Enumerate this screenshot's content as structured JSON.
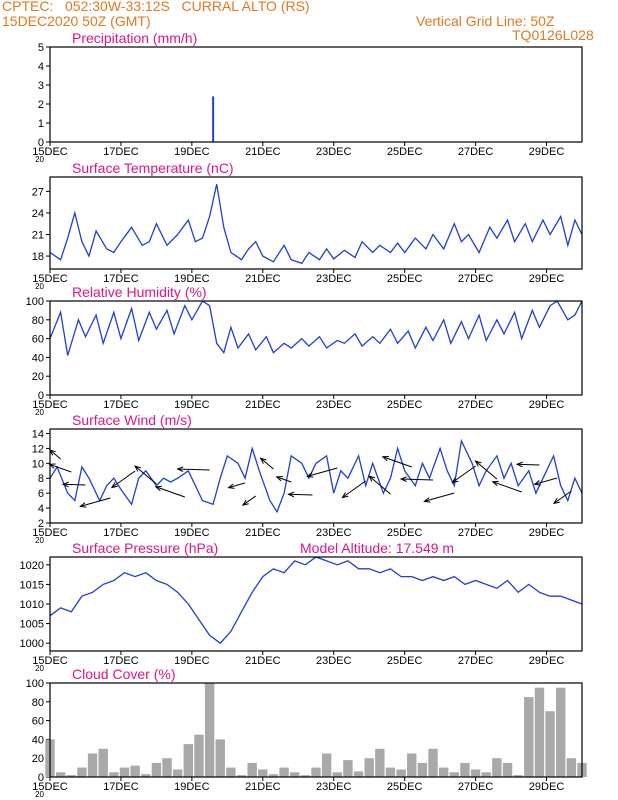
{
  "header": {
    "station": "CPTEC:   052:30W-33:12S   CURRAL ALTO (RS)",
    "date": "15DEC2020 50Z (GMT)",
    "grid_note": "Vertical Grid Line: 50Z",
    "code": "TQ0126L028",
    "altitude": "Model Altitude: 17.549 m"
  },
  "colors": {
    "header": "#e07a1f",
    "title": "#e0158a",
    "line": "#1f3fd6",
    "bar": "#a9a9a9",
    "arrow": "#000000"
  },
  "x_axis": {
    "ticks": [
      "15DEC",
      "17DEC",
      "19DEC",
      "21DEC",
      "23DEC",
      "25DEC",
      "27DEC",
      "29DEC"
    ],
    "tick_days": [
      15,
      17,
      19,
      21,
      23,
      25,
      27,
      29
    ],
    "range": [
      15,
      30.0
    ],
    "cut_label": "20"
  },
  "chart_data": [
    {
      "type": "bar",
      "title": "Precipitation (mm/h)",
      "ylim": [
        0,
        5
      ],
      "yticks": [
        0,
        1,
        2,
        3,
        4,
        5
      ],
      "x": [
        19.6
      ],
      "values": [
        2.4
      ]
    },
    {
      "type": "line",
      "title": "Surface Temperature (nC)",
      "ylim": [
        16.2,
        29
      ],
      "yticks": [
        18,
        21,
        24,
        27
      ],
      "x": [
        15.0,
        15.3,
        15.5,
        15.7,
        15.9,
        16.1,
        16.3,
        16.6,
        16.8,
        17.0,
        17.3,
        17.6,
        17.8,
        18.0,
        18.3,
        18.6,
        18.9,
        19.1,
        19.3,
        19.5,
        19.7,
        19.9,
        20.1,
        20.4,
        20.6,
        20.8,
        21.0,
        21.3,
        21.6,
        21.8,
        22.1,
        22.3,
        22.6,
        22.8,
        23.0,
        23.3,
        23.6,
        23.8,
        24.1,
        24.3,
        24.6,
        24.8,
        25.0,
        25.3,
        25.6,
        25.8,
        26.1,
        26.4,
        26.6,
        26.8,
        27.1,
        27.4,
        27.6,
        27.9,
        28.1,
        28.4,
        28.6,
        28.9,
        29.1,
        29.4,
        29.6,
        29.8,
        30.0
      ],
      "values": [
        18.5,
        17.5,
        20.5,
        24.0,
        20.0,
        18.0,
        21.5,
        19.0,
        18.5,
        20.0,
        22.0,
        19.5,
        20.0,
        22.5,
        19.5,
        21.0,
        23.0,
        20.0,
        20.5,
        23.5,
        28.0,
        22.0,
        18.5,
        17.5,
        19.0,
        20.0,
        18.0,
        17.2,
        19.5,
        17.5,
        17.0,
        18.5,
        17.5,
        19.0,
        17.6,
        18.8,
        17.8,
        20.0,
        18.5,
        19.5,
        18.5,
        19.8,
        18.5,
        20.5,
        19.0,
        21.0,
        19.0,
        22.5,
        20.0,
        21.0,
        18.5,
        22.0,
        20.5,
        23.0,
        20.0,
        22.5,
        20.0,
        23.0,
        21.0,
        23.5,
        19.5,
        23.0,
        21.0
      ]
    },
    {
      "type": "line",
      "title": "Relative Humidity (%)",
      "ylim": [
        0,
        100
      ],
      "yticks": [
        0,
        20,
        40,
        60,
        80,
        100
      ],
      "x": [
        15.0,
        15.3,
        15.5,
        15.8,
        16.0,
        16.3,
        16.5,
        16.8,
        17.0,
        17.3,
        17.5,
        17.8,
        18.0,
        18.3,
        18.5,
        18.8,
        19.0,
        19.3,
        19.5,
        19.7,
        19.9,
        20.1,
        20.3,
        20.6,
        20.8,
        21.1,
        21.3,
        21.6,
        21.8,
        22.1,
        22.3,
        22.6,
        22.8,
        23.1,
        23.3,
        23.6,
        23.8,
        24.1,
        24.3,
        24.6,
        24.8,
        25.1,
        25.3,
        25.6,
        25.8,
        26.1,
        26.3,
        26.6,
        26.8,
        27.1,
        27.3,
        27.6,
        27.8,
        28.1,
        28.3,
        28.6,
        28.8,
        29.1,
        29.3,
        29.6,
        29.8,
        30.0
      ],
      "values": [
        60,
        88,
        42,
        80,
        62,
        85,
        55,
        88,
        60,
        92,
        58,
        88,
        70,
        90,
        65,
        95,
        80,
        100,
        95,
        55,
        45,
        72,
        50,
        65,
        48,
        62,
        45,
        55,
        50,
        60,
        52,
        62,
        50,
        58,
        55,
        65,
        52,
        62,
        55,
        70,
        55,
        68,
        50,
        72,
        58,
        80,
        55,
        78,
        60,
        85,
        58,
        80,
        65,
        88,
        60,
        90,
        72,
        95,
        100,
        80,
        85,
        100
      ]
    },
    {
      "type": "line",
      "title": "Surface Wind (m/s)",
      "ylim": [
        2,
        14.6
      ],
      "yticks": [
        2,
        4,
        6,
        8,
        10,
        12,
        14
      ],
      "x": [
        15.0,
        15.2,
        15.5,
        15.7,
        15.9,
        16.1,
        16.4,
        16.6,
        16.8,
        17.0,
        17.3,
        17.5,
        17.7,
        18.0,
        18.2,
        18.4,
        18.6,
        18.9,
        19.1,
        19.3,
        19.6,
        19.8,
        20.0,
        20.3,
        20.5,
        20.7,
        20.9,
        21.2,
        21.4,
        21.6,
        21.8,
        22.1,
        22.3,
        22.5,
        22.8,
        23.0,
        23.2,
        23.4,
        23.7,
        23.9,
        24.1,
        24.4,
        24.6,
        24.8,
        25.0,
        25.3,
        25.5,
        25.7,
        26.0,
        26.2,
        26.4,
        26.6,
        26.9,
        27.1,
        27.3,
        27.6,
        27.8,
        28.0,
        28.2,
        28.5,
        28.7,
        28.9,
        29.2,
        29.4,
        29.6,
        29.8,
        30.0
      ],
      "values": [
        8,
        9.5,
        6,
        5,
        9.5,
        8,
        5,
        7,
        8,
        6.5,
        4.5,
        8,
        9,
        7,
        8,
        7.5,
        8,
        9,
        7,
        5,
        4.5,
        8,
        11,
        10,
        8,
        12,
        9,
        5,
        3.5,
        6,
        11,
        10,
        8,
        10,
        11,
        6,
        9,
        8,
        11,
        7,
        10,
        6,
        8,
        12,
        9,
        7,
        10,
        8,
        12,
        9,
        7,
        13,
        10,
        7,
        9,
        11,
        8,
        10,
        7,
        9,
        6,
        8,
        11,
        7,
        5,
        8,
        6
      ]
    },
    {
      "type": "line",
      "title": "Surface Pressure (hPa)",
      "ylim": [
        998,
        1022
      ],
      "yticks": [
        1000,
        1005,
        1010,
        1015,
        1020
      ],
      "x": [
        15.0,
        15.3,
        15.6,
        15.9,
        16.2,
        16.5,
        16.8,
        17.1,
        17.4,
        17.7,
        18.0,
        18.3,
        18.6,
        18.9,
        19.2,
        19.5,
        19.8,
        20.1,
        20.4,
        20.7,
        21.0,
        21.3,
        21.6,
        21.9,
        22.2,
        22.5,
        22.8,
        23.1,
        23.4,
        23.7,
        24.0,
        24.3,
        24.6,
        24.9,
        25.2,
        25.5,
        25.8,
        26.1,
        26.4,
        26.7,
        27.0,
        27.3,
        27.6,
        27.9,
        28.2,
        28.5,
        28.8,
        29.1,
        29.4,
        29.7,
        30.0
      ],
      "values": [
        1007,
        1009,
        1008,
        1012,
        1013,
        1015,
        1016,
        1018,
        1017,
        1018,
        1016,
        1015,
        1013,
        1010,
        1006,
        1002,
        1000,
        1003,
        1008,
        1013,
        1017,
        1019,
        1018,
        1021,
        1020,
        1022,
        1021,
        1020,
        1021,
        1019,
        1019,
        1018,
        1019,
        1017,
        1017,
        1016,
        1017,
        1016,
        1017,
        1015,
        1016,
        1015,
        1014,
        1016,
        1013,
        1015,
        1013,
        1012,
        1012,
        1011,
        1010
      ]
    },
    {
      "type": "area",
      "title": "Cloud Cover (%)",
      "ylim": [
        0,
        100
      ],
      "yticks": [
        0,
        20,
        40,
        60,
        80,
        100
      ],
      "x": [
        15.0,
        15.3,
        15.6,
        15.9,
        16.2,
        16.5,
        16.8,
        17.1,
        17.4,
        17.7,
        18.0,
        18.3,
        18.6,
        18.9,
        19.2,
        19.5,
        19.8,
        20.1,
        20.4,
        20.7,
        21.0,
        21.3,
        21.6,
        21.9,
        22.2,
        22.5,
        22.8,
        23.1,
        23.4,
        23.7,
        24.0,
        24.3,
        24.6,
        24.9,
        25.2,
        25.5,
        25.8,
        26.1,
        26.4,
        26.7,
        27.0,
        27.3,
        27.6,
        27.9,
        28.2,
        28.5,
        28.8,
        29.1,
        29.4,
        29.7,
        30.0
      ],
      "values": [
        40,
        5,
        2,
        10,
        25,
        30,
        5,
        10,
        12,
        3,
        15,
        20,
        8,
        35,
        45,
        100,
        40,
        10,
        2,
        15,
        8,
        3,
        10,
        5,
        2,
        10,
        25,
        5,
        18,
        6,
        20,
        30,
        10,
        8,
        25,
        15,
        30,
        10,
        5,
        15,
        8,
        5,
        20,
        15,
        2,
        85,
        95,
        70,
        95,
        20,
        15
      ]
    }
  ]
}
